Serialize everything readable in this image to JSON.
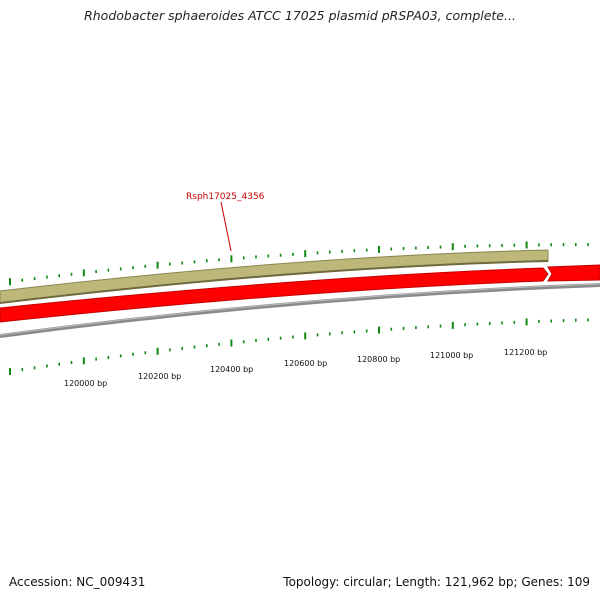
{
  "title": "Rhodobacter sphaeroides ATCC 17025 plasmid pRSPA03, complete...",
  "footer": {
    "accession": "Accession: NC_009431",
    "summary": "Topology: circular; Length: 121,962 bp; Genes: 109"
  },
  "map": {
    "colors": {
      "forward_feature": "#bdb87a",
      "forward_feature_edge": "#8a8650",
      "reverse_feature": "#ff0000",
      "reverse_feature_edge": "#c40000",
      "backbone": "#8a8a8a",
      "ticks": "#118811",
      "gene_label": "#cc0000"
    },
    "gene_label": "Rsph17025_4356",
    "bp_ticks": [
      {
        "label": "120000 bp"
      },
      {
        "label": "120200 bp"
      },
      {
        "label": "120400 bp"
      },
      {
        "label": "120600 bp"
      },
      {
        "label": "120800 bp"
      },
      {
        "label": "121000 bp"
      },
      {
        "label": "121200 bp"
      }
    ]
  }
}
